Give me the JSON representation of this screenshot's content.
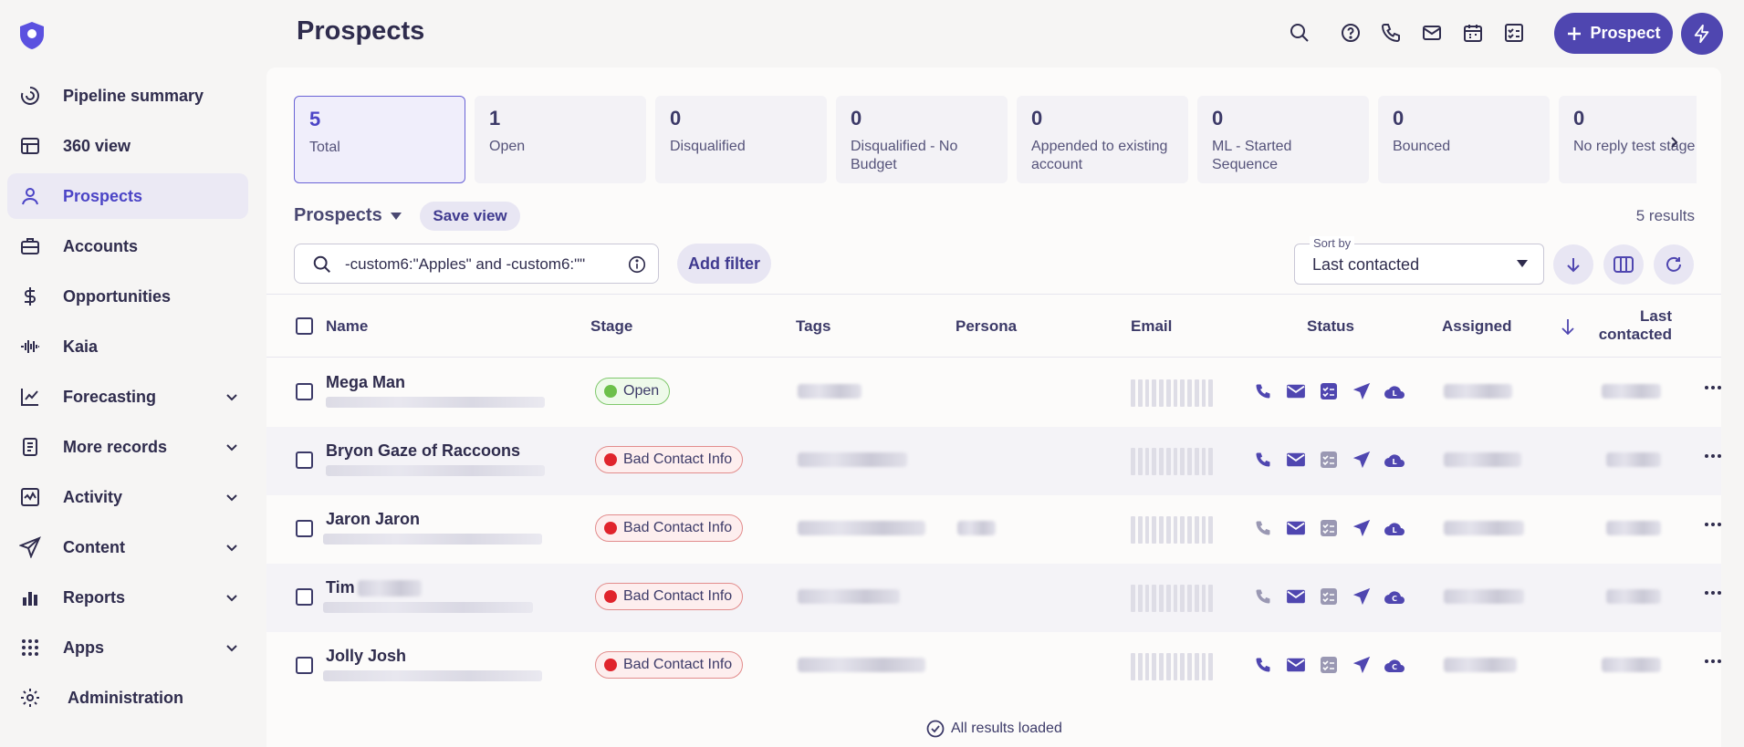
{
  "page": {
    "title": "Prospects"
  },
  "sidebar": {
    "items": [
      {
        "label": "Pipeline summary",
        "icon": "pipeline-icon",
        "active": false,
        "expandable": false
      },
      {
        "label": "360 view",
        "icon": "table-view-icon",
        "active": false,
        "expandable": false
      },
      {
        "label": "Prospects",
        "icon": "person-icon",
        "active": true,
        "expandable": false
      },
      {
        "label": "Accounts",
        "icon": "briefcase-icon",
        "active": false,
        "expandable": false
      },
      {
        "label": "Opportunities",
        "icon": "dollar-icon",
        "active": false,
        "expandable": false
      },
      {
        "label": "Kaia",
        "icon": "waveform-icon",
        "active": false,
        "expandable": false
      },
      {
        "label": "Forecasting",
        "icon": "trend-chart-icon",
        "active": false,
        "expandable": true
      },
      {
        "label": "More records",
        "icon": "records-icon",
        "active": false,
        "expandable": true
      },
      {
        "label": "Activity",
        "icon": "activity-icon",
        "active": false,
        "expandable": true
      },
      {
        "label": "Content",
        "icon": "send-icon",
        "active": false,
        "expandable": true
      },
      {
        "label": "Reports",
        "icon": "bar-chart-icon",
        "active": false,
        "expandable": true
      },
      {
        "label": "Apps",
        "icon": "apps-grid-icon",
        "active": false,
        "expandable": true
      },
      {
        "label": "Administration",
        "icon": "gear-icon",
        "active": false,
        "expandable": false
      }
    ]
  },
  "header": {
    "add_button_label": "Prospect"
  },
  "stages": [
    {
      "count": "5",
      "label": "Total",
      "active": true
    },
    {
      "count": "1",
      "label": "Open",
      "active": false
    },
    {
      "count": "0",
      "label": "Disqualified",
      "active": false
    },
    {
      "count": "0",
      "label": "Disqualified - No Budget",
      "active": false
    },
    {
      "count": "0",
      "label": "Appended to existing account",
      "active": false
    },
    {
      "count": "0",
      "label": "ML - Started Sequence",
      "active": false
    },
    {
      "count": "0",
      "label": "Bounced",
      "active": false
    },
    {
      "count": "0",
      "label": "No reply test stage",
      "active": false
    }
  ],
  "view": {
    "name": "Prospects",
    "save_label": "Save view",
    "results": "5 results"
  },
  "search": {
    "value": "-custom6:\"Apples\" and -custom6:\"\""
  },
  "filter": {
    "add_label": "Add filter"
  },
  "sort": {
    "label": "Sort by",
    "value": "Last contacted"
  },
  "table": {
    "columns": {
      "name": "Name",
      "stage": "Stage",
      "tags": "Tags",
      "persona": "Persona",
      "email": "Email",
      "status": "Status",
      "assigned": "Assigned",
      "last_contacted": "Last contacted"
    },
    "rows": [
      {
        "name": "Mega Man",
        "stage": "Open",
        "stage_type": "open"
      },
      {
        "name": "Bryon Gaze of Raccoons",
        "stage": "Bad Contact Info",
        "stage_type": "bad"
      },
      {
        "name": "Jaron Jaron",
        "stage": "Bad Contact Info",
        "stage_type": "bad"
      },
      {
        "name": "Tim",
        "stage": "Bad Contact Info",
        "stage_type": "bad"
      },
      {
        "name": "Jolly Josh",
        "stage": "Bad Contact Info",
        "stage_type": "bad"
      }
    ]
  },
  "footer": {
    "status": "All results loaded"
  },
  "colors": {
    "accent": "#4f46b0",
    "open": "#6cc04a",
    "bad": "#e0242c"
  }
}
